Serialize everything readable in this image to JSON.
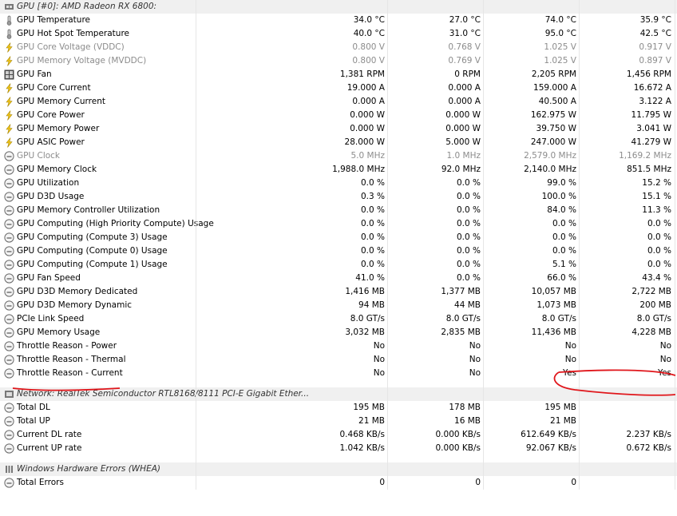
{
  "groups": [
    {
      "title": "GPU [#0]: AMD Radeon RX 6800:",
      "header_icon": "gpu-chip-icon",
      "rows": [
        {
          "icon": "thermometer-icon",
          "label": "GPU Temperature",
          "v": [
            "34.0 °C",
            "27.0 °C",
            "74.0 °C",
            "35.9 °C"
          ],
          "dim": false
        },
        {
          "icon": "thermometer-icon",
          "label": "GPU Hot Spot Temperature",
          "v": [
            "40.0 °C",
            "31.0 °C",
            "95.0 °C",
            "42.5 °C"
          ],
          "dim": false
        },
        {
          "icon": "lightning-icon",
          "label": "GPU Core Voltage (VDDC)",
          "v": [
            "0.800 V",
            "0.768 V",
            "1.025 V",
            "0.917 V"
          ],
          "dim": true
        },
        {
          "icon": "lightning-icon",
          "label": "GPU Memory Voltage (MVDDC)",
          "v": [
            "0.800 V",
            "0.769 V",
            "1.025 V",
            "0.897 V"
          ],
          "dim": true
        },
        {
          "icon": "fan-grid-icon",
          "label": "GPU Fan",
          "v": [
            "1,381 RPM",
            "0 RPM",
            "2,205 RPM",
            "1,456 RPM"
          ],
          "dim": false
        },
        {
          "icon": "lightning-icon",
          "label": "GPU Core Current",
          "v": [
            "19.000 A",
            "0.000 A",
            "159.000 A",
            "16.672 A"
          ],
          "dim": false
        },
        {
          "icon": "lightning-icon",
          "label": "GPU Memory Current",
          "v": [
            "0.000 A",
            "0.000 A",
            "40.500 A",
            "3.122 A"
          ],
          "dim": false
        },
        {
          "icon": "lightning-icon",
          "label": "GPU Core Power",
          "v": [
            "0.000 W",
            "0.000 W",
            "162.975 W",
            "11.795 W"
          ],
          "dim": false
        },
        {
          "icon": "lightning-icon",
          "label": "GPU Memory Power",
          "v": [
            "0.000 W",
            "0.000 W",
            "39.750 W",
            "3.041 W"
          ],
          "dim": false
        },
        {
          "icon": "lightning-icon",
          "label": "GPU ASIC Power",
          "v": [
            "28.000 W",
            "5.000 W",
            "247.000 W",
            "41.279 W"
          ],
          "dim": false
        },
        {
          "icon": "gauge-icon",
          "label": "GPU Clock",
          "v": [
            "5.0 MHz",
            "1.0 MHz",
            "2,579.0 MHz",
            "1,169.2 MHz"
          ],
          "dim": true
        },
        {
          "icon": "gauge-icon",
          "label": "GPU Memory Clock",
          "v": [
            "1,988.0 MHz",
            "92.0 MHz",
            "2,140.0 MHz",
            "851.5 MHz"
          ],
          "dim": false
        },
        {
          "icon": "gauge-icon",
          "label": "GPU Utilization",
          "v": [
            "0.0 %",
            "0.0 %",
            "99.0 %",
            "15.2 %"
          ],
          "dim": false
        },
        {
          "icon": "gauge-icon",
          "label": "GPU D3D Usage",
          "v": [
            "0.3 %",
            "0.0 %",
            "100.0 %",
            "15.1 %"
          ],
          "dim": false
        },
        {
          "icon": "gauge-icon",
          "label": "GPU Memory Controller Utilization",
          "v": [
            "0.0 %",
            "0.0 %",
            "84.0 %",
            "11.3 %"
          ],
          "dim": false
        },
        {
          "icon": "gauge-icon",
          "label": "GPU Computing (High Priority Compute) Usage",
          "v": [
            "0.0 %",
            "0.0 %",
            "0.0 %",
            "0.0 %"
          ],
          "dim": false
        },
        {
          "icon": "gauge-icon",
          "label": "GPU Computing (Compute 3) Usage",
          "v": [
            "0.0 %",
            "0.0 %",
            "0.0 %",
            "0.0 %"
          ],
          "dim": false
        },
        {
          "icon": "gauge-icon",
          "label": "GPU Computing (Compute 0) Usage",
          "v": [
            "0.0 %",
            "0.0 %",
            "0.0 %",
            "0.0 %"
          ],
          "dim": false
        },
        {
          "icon": "gauge-icon",
          "label": "GPU Computing (Compute 1) Usage",
          "v": [
            "0.0 %",
            "0.0 %",
            "5.1 %",
            "0.0 %"
          ],
          "dim": false
        },
        {
          "icon": "gauge-icon",
          "label": "GPU Fan Speed",
          "v": [
            "41.0 %",
            "0.0 %",
            "66.0 %",
            "43.4 %"
          ],
          "dim": false
        },
        {
          "icon": "gauge-icon",
          "label": "GPU D3D Memory Dedicated",
          "v": [
            "1,416 MB",
            "1,377 MB",
            "10,057 MB",
            "2,722 MB"
          ],
          "dim": false
        },
        {
          "icon": "gauge-icon",
          "label": "GPU D3D Memory Dynamic",
          "v": [
            "94 MB",
            "44 MB",
            "1,073 MB",
            "200 MB"
          ],
          "dim": false
        },
        {
          "icon": "gauge-icon",
          "label": "PCIe Link Speed",
          "v": [
            "8.0 GT/s",
            "8.0 GT/s",
            "8.0 GT/s",
            "8.0 GT/s"
          ],
          "dim": false
        },
        {
          "icon": "gauge-icon",
          "label": "GPU Memory Usage",
          "v": [
            "3,032 MB",
            "2,835 MB",
            "11,436 MB",
            "4,228 MB"
          ],
          "dim": false
        },
        {
          "icon": "gauge-icon",
          "label": "Throttle Reason - Power",
          "v": [
            "No",
            "No",
            "No",
            "No"
          ],
          "dim": false
        },
        {
          "icon": "gauge-icon",
          "label": "Throttle Reason - Thermal",
          "v": [
            "No",
            "No",
            "No",
            "No"
          ],
          "dim": false
        },
        {
          "icon": "gauge-icon",
          "label": "Throttle Reason - Current",
          "v": [
            "No",
            "No",
            "Yes",
            "Yes"
          ],
          "dim": false
        }
      ]
    },
    {
      "title": "Network: RealTek Semiconductor RTL8168/8111 PCI-E Gigabit Ether...",
      "header_icon": "network-icon",
      "rows": [
        {
          "icon": "gauge-icon",
          "label": "Total DL",
          "v": [
            "195 MB",
            "178 MB",
            "195 MB",
            ""
          ],
          "dim": false
        },
        {
          "icon": "gauge-icon",
          "label": "Total UP",
          "v": [
            "21 MB",
            "16 MB",
            "21 MB",
            ""
          ],
          "dim": false
        },
        {
          "icon": "gauge-icon",
          "label": "Current DL rate",
          "v": [
            "0.468 KB/s",
            "0.000 KB/s",
            "612.649 KB/s",
            "2.237 KB/s"
          ],
          "dim": false
        },
        {
          "icon": "gauge-icon",
          "label": "Current UP rate",
          "v": [
            "1.042 KB/s",
            "0.000 KB/s",
            "92.067 KB/s",
            "0.672 KB/s"
          ],
          "dim": false
        }
      ]
    },
    {
      "title": "Windows Hardware Errors (WHEA)",
      "header_icon": "hardware-icon",
      "rows": [
        {
          "icon": "gauge-icon",
          "label": "Total Errors",
          "v": [
            "0",
            "0",
            "0",
            ""
          ],
          "dim": false
        }
      ]
    }
  ],
  "annotation_color": "#e0161b"
}
